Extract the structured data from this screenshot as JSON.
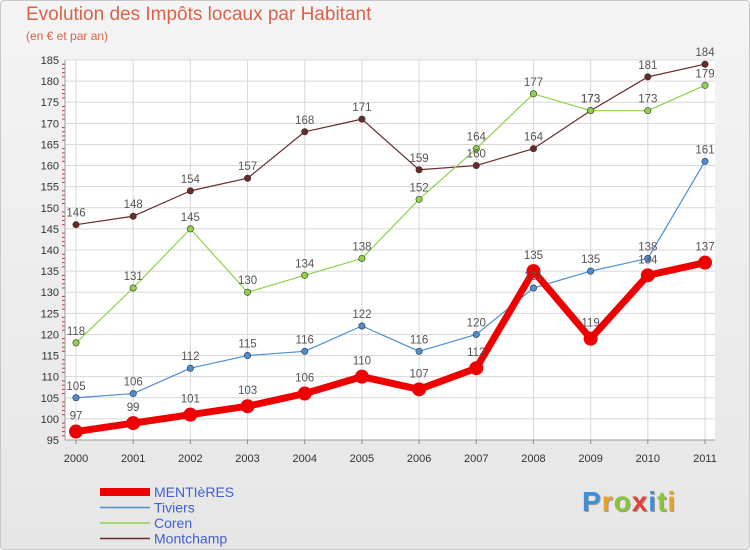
{
  "chart_data": {
    "type": "line",
    "title": "Evolution des Impôts locaux par Habitant",
    "subtitle": "(en € et par an)",
    "categories": [
      "2000",
      "2001",
      "2002",
      "2003",
      "2004",
      "2005",
      "2006",
      "2007",
      "2008",
      "2009",
      "2010",
      "2011"
    ],
    "ylim": [
      95,
      185
    ],
    "yticks": [
      95,
      100,
      105,
      110,
      115,
      120,
      125,
      130,
      135,
      140,
      145,
      150,
      155,
      160,
      165,
      170,
      175,
      180,
      185
    ],
    "grid": true,
    "legend_position": "bottom-left",
    "series": [
      {
        "name": "MENTIèRES",
        "color": "#ee0000",
        "values": [
          97,
          99,
          101,
          103,
          106,
          110,
          107,
          112,
          135,
          119,
          134,
          137
        ]
      },
      {
        "name": "Tiviers",
        "color": "#4a8fd4",
        "values": [
          105,
          106,
          112,
          115,
          116,
          122,
          116,
          120,
          131,
          135,
          138,
          161
        ]
      },
      {
        "name": "Coren",
        "color": "#8ed24a",
        "values": [
          118,
          131,
          145,
          130,
          134,
          138,
          152,
          164,
          177,
          173,
          173,
          179
        ]
      },
      {
        "name": "Montchamp",
        "color": "#6b2a2a",
        "values": [
          146,
          148,
          154,
          157,
          168,
          171,
          159,
          160,
          164,
          173,
          181,
          184
        ]
      }
    ]
  },
  "brand": {
    "letters": [
      "P",
      "r",
      "o",
      "x",
      "i",
      "t",
      "i"
    ],
    "colors": [
      "#3c8fd8",
      "#e8a12a",
      "#8cc43c",
      "#e2413a",
      "#3c8fd8",
      "#8cc43c",
      "#e8a12a"
    ]
  }
}
